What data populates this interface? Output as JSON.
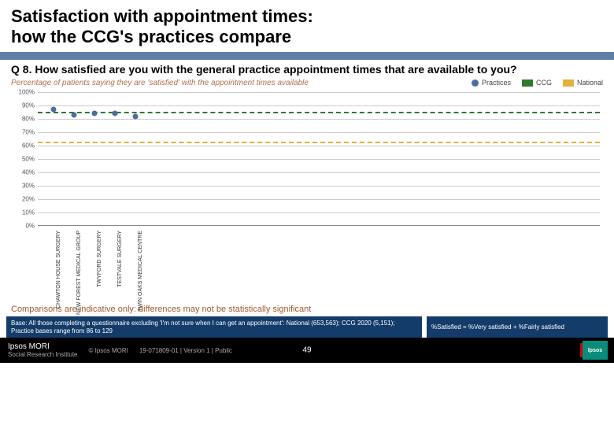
{
  "title_line1": "Satisfaction with appointment times:",
  "title_line2": "how the CCG's practices compare",
  "question": "Q 8. How satisfied are you with the general practice appointment times that are available to you?",
  "subtitle": "Percentage of patients saying they are 'satisfied' with the appointment times available",
  "legend": {
    "practices": "Practices",
    "ccg": "CCG",
    "national": "National"
  },
  "chart": {
    "type": "scatter-with-reference-lines",
    "ylim": [
      0,
      100
    ],
    "ytick_step": 10,
    "ytick_suffix": "%",
    "background_color": "#ffffff",
    "grid_color": "#cccccc",
    "axis_color": "#888888",
    "label_fontsize": 8,
    "practices": [
      {
        "name": "CHAWTON HOUSE SURGERY",
        "value": 87
      },
      {
        "name": "NEW FOREST MEDICAL GROUP",
        "value": 83
      },
      {
        "name": "TWYFORD SURGERY",
        "value": 84
      },
      {
        "name": "TESTVALE SURGERY",
        "value": 84
      },
      {
        "name": "TWIN OAKS MEDICAL CENTRE",
        "value": 82
      }
    ],
    "practice_color": "#4c6e99",
    "ccg_value": 85,
    "ccg_color": "#2e7a2e",
    "national_value": 63,
    "national_color": "#e3b040"
  },
  "caveat": "Comparisons are indicative only: differences may not be statistically significant",
  "footer_left": "Base: All those completing a questionnaire excluding 'I'm not sure when I can get an appointment': National (653,563); CCG 2020 (5,151); Practice bases range from 86 to 129",
  "footer_right": "%Satisfied = %Very satisfied + %Fairly satisfied",
  "brand": "Ipsos MORI",
  "brand_sub": "Social Research Institute",
  "copyright": "© Ipsos MORI",
  "version": "19-071809-01 | Version 1 | Public",
  "page": "49",
  "ipsos": "Ipsos"
}
